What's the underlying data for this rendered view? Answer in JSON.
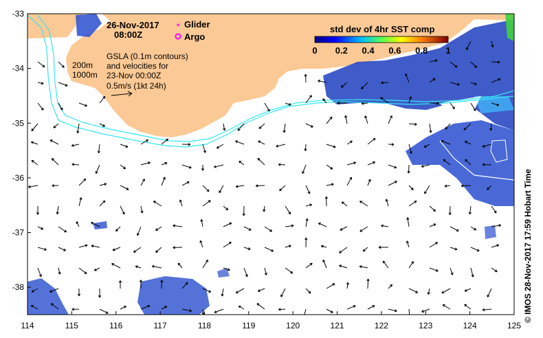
{
  "date_title": "26-Nov-2017",
  "time_title": "08:00Z",
  "legend": {
    "glider": "Glider",
    "argo": "Argo",
    "glider_color": "#ff33cc",
    "argo_color": "#ff00ff"
  },
  "info_lines": [
    "GSLA (0.1m contours)",
    "and velocities for",
    "23-Nov 00:00Z",
    "0.5m/s (1kt 24h)"
  ],
  "isobaths": {
    "a": "200m",
    "b": "1000m",
    "color": "#33e6f0"
  },
  "colorbar": {
    "title": "std dev of 4hr SST comp",
    "ticks": [
      "0",
      "0.2",
      "0.4",
      "0.6",
      "0.8",
      "1"
    ]
  },
  "land_color": "#fbc995",
  "side_text": "© IMOS 28-Nov-2017 17:59 Hobart Time",
  "axes": {
    "x_ticks": [
      "114",
      "115",
      "116",
      "117",
      "118",
      "119",
      "120",
      "121",
      "122",
      "123",
      "124",
      "125"
    ],
    "y_ticks": [
      "-33",
      "-34",
      "-35",
      "-36",
      "-37",
      "-38"
    ],
    "lon_range": [
      114,
      125
    ],
    "lat_range": [
      -38.5,
      -33
    ]
  }
}
